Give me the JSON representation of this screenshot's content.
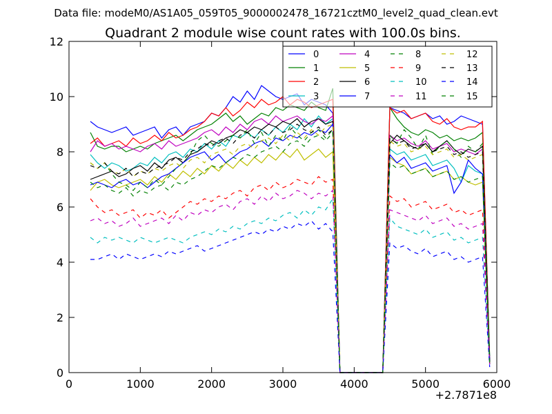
{
  "figure": {
    "suptitle": "Data file: modeM0/AS1A05_059T05_9000002478_16721cztM0_level2_quad_clean.evt"
  },
  "chart_data": {
    "type": "line",
    "title": "Quadrant 2 module wise count rates with 100.0s bins.",
    "xlabel": "",
    "ylabel": "",
    "xlim": [
      0,
      6000
    ],
    "ylim": [
      0,
      12
    ],
    "x_ticks": [
      "0",
      "1000",
      "2000",
      "3000",
      "4000",
      "5000",
      "6000"
    ],
    "y_ticks": [
      "0",
      "2",
      "4",
      "6",
      "8",
      "10",
      "12"
    ],
    "x_offset_label": "+2.7871e8",
    "grid": false,
    "legend_position": "top-right",
    "x": [
      300,
      400,
      500,
      600,
      700,
      800,
      900,
      1000,
      1100,
      1200,
      1300,
      1400,
      1500,
      1600,
      1700,
      1800,
      1900,
      2000,
      2100,
      2200,
      2300,
      2400,
      2500,
      2600,
      2700,
      2800,
      2900,
      3000,
      3100,
      3200,
      3300,
      3400,
      3500,
      3600,
      3700,
      3800,
      3900,
      4000,
      4100,
      4200,
      4300,
      4400,
      4500,
      4600,
      4700,
      4800,
      4900,
      5000,
      5100,
      5200,
      5300,
      5400,
      5500,
      5600,
      5700,
      5800,
      5900
    ],
    "series": [
      {
        "name": "0",
        "color": "#0000ff",
        "dash": "solid",
        "values": [
          9.1,
          8.9,
          8.8,
          8.7,
          8.8,
          8.9,
          8.6,
          8.7,
          8.8,
          8.9,
          8.5,
          8.8,
          8.9,
          8.6,
          8.9,
          9.0,
          9.1,
          9.4,
          9.3,
          9.6,
          10.0,
          9.8,
          10.2,
          9.9,
          10.4,
          10.2,
          10.0,
          9.9,
          10.0,
          10.1,
          9.7,
          9.9,
          9.8,
          9.7,
          9.4,
          0.0,
          0.0,
          0.0,
          0.0,
          0.0,
          0.0,
          0.0,
          9.6,
          9.5,
          9.4,
          9.2,
          9.3,
          9.4,
          9.2,
          9.3,
          9.0,
          9.1,
          9.3,
          9.2,
          9.1,
          9.0,
          0.5
        ]
      },
      {
        "name": "1",
        "color": "#008000",
        "dash": "solid",
        "values": [
          8.7,
          8.2,
          8.1,
          8.2,
          8.2,
          8.0,
          8.1,
          8.2,
          8.1,
          8.3,
          8.4,
          8.5,
          8.6,
          8.4,
          8.6,
          8.8,
          8.9,
          9.0,
          9.2,
          9.4,
          9.1,
          9.3,
          9.0,
          9.2,
          9.4,
          9.3,
          9.6,
          9.5,
          9.7,
          9.6,
          9.5,
          9.8,
          9.6,
          9.5,
          10.3,
          0.0,
          0.0,
          0.0,
          0.0,
          0.0,
          0.0,
          0.0,
          9.6,
          9.2,
          8.9,
          8.7,
          8.6,
          8.8,
          8.7,
          8.5,
          8.6,
          8.4,
          8.5,
          8.4,
          8.5,
          8.7,
          0.6
        ]
      },
      {
        "name": "2",
        "color": "#ff0000",
        "dash": "solid",
        "values": [
          8.3,
          8.5,
          8.2,
          8.3,
          8.4,
          8.2,
          8.5,
          8.3,
          8.4,
          8.6,
          8.4,
          8.7,
          8.5,
          8.6,
          8.8,
          8.9,
          9.1,
          9.4,
          9.3,
          9.6,
          9.3,
          9.5,
          9.8,
          9.6,
          9.9,
          9.7,
          9.8,
          10.0,
          9.7,
          9.9,
          9.8,
          9.6,
          9.7,
          9.8,
          9.9,
          0.0,
          0.0,
          0.0,
          0.0,
          0.0,
          0.0,
          0.0,
          9.6,
          9.4,
          9.5,
          9.2,
          9.3,
          9.4,
          9.1,
          9.0,
          9.2,
          8.9,
          8.8,
          8.9,
          8.9,
          9.1,
          0.4
        ]
      },
      {
        "name": "3",
        "color": "#00bfbf",
        "dash": "solid",
        "values": [
          7.9,
          7.6,
          7.4,
          7.6,
          7.5,
          7.3,
          7.4,
          7.6,
          7.5,
          7.8,
          7.6,
          7.9,
          8.0,
          7.8,
          8.1,
          8.0,
          8.3,
          8.1,
          8.4,
          8.2,
          8.6,
          8.5,
          8.7,
          8.5,
          8.8,
          8.6,
          8.9,
          8.7,
          9.0,
          8.8,
          9.2,
          8.9,
          9.3,
          9.0,
          9.2,
          0.0,
          0.0,
          0.0,
          0.0,
          0.0,
          0.0,
          0.0,
          8.1,
          7.9,
          8.0,
          7.7,
          7.8,
          7.9,
          7.5,
          7.6,
          7.7,
          7.4,
          6.9,
          7.5,
          7.3,
          7.2,
          0.4
        ]
      },
      {
        "name": "4",
        "color": "#bf00bf",
        "dash": "solid",
        "values": [
          8.0,
          8.4,
          8.2,
          8.3,
          8.1,
          8.2,
          8.1,
          8.0,
          8.2,
          8.3,
          8.1,
          8.4,
          8.2,
          8.3,
          8.4,
          8.5,
          8.7,
          8.8,
          8.6,
          8.9,
          8.7,
          9.0,
          8.8,
          9.1,
          9.2,
          9.0,
          9.3,
          9.1,
          9.2,
          9.3,
          9.1,
          9.0,
          9.2,
          9.1,
          9.3,
          0.0,
          0.0,
          0.0,
          0.0,
          0.0,
          0.0,
          0.0,
          8.6,
          8.4,
          8.5,
          8.3,
          8.2,
          8.4,
          8.1,
          8.2,
          8.3,
          8.0,
          8.1,
          8.0,
          7.9,
          8.1,
          0.4
        ]
      },
      {
        "name": "5",
        "color": "#bfbf00",
        "dash": "solid",
        "values": [
          6.6,
          6.9,
          7.0,
          6.8,
          6.7,
          6.8,
          6.9,
          7.0,
          6.8,
          7.1,
          6.9,
          7.2,
          7.0,
          7.3,
          7.1,
          7.4,
          7.2,
          7.5,
          7.3,
          7.6,
          7.4,
          7.7,
          7.5,
          7.8,
          7.6,
          7.9,
          7.7,
          8.0,
          7.8,
          8.1,
          7.7,
          7.9,
          8.1,
          7.8,
          8.0,
          0.0,
          0.0,
          0.0,
          0.0,
          0.0,
          0.0,
          0.0,
          7.8,
          7.6,
          7.5,
          7.2,
          7.3,
          7.4,
          7.1,
          7.2,
          7.3,
          7.0,
          7.1,
          6.9,
          6.8,
          6.9,
          0.4
        ]
      },
      {
        "name": "6",
        "color": "#000000",
        "dash": "solid",
        "values": [
          7.0,
          7.1,
          7.2,
          7.3,
          7.1,
          7.2,
          7.4,
          7.5,
          7.3,
          7.6,
          7.4,
          7.7,
          7.8,
          7.6,
          7.9,
          8.0,
          8.2,
          8.4,
          8.3,
          8.5,
          8.6,
          8.8,
          8.7,
          8.9,
          8.8,
          9.0,
          8.9,
          9.1,
          9.0,
          9.2,
          8.9,
          9.1,
          9.2,
          9.0,
          9.1,
          0.0,
          0.0,
          0.0,
          0.0,
          0.0,
          0.0,
          0.0,
          8.3,
          8.6,
          8.4,
          8.2,
          8.1,
          8.3,
          8.0,
          8.2,
          8.4,
          8.1,
          7.9,
          8.1,
          8.0,
          8.2,
          0.4
        ]
      },
      {
        "name": "7",
        "color": "#0000ff",
        "dash": "solid",
        "values": [
          6.8,
          6.9,
          6.8,
          6.7,
          6.9,
          7.0,
          6.8,
          6.9,
          6.7,
          6.9,
          7.1,
          7.2,
          7.4,
          7.6,
          7.8,
          7.9,
          8.0,
          7.7,
          7.9,
          7.6,
          7.8,
          8.0,
          8.1,
          8.3,
          8.4,
          8.2,
          8.5,
          8.4,
          8.6,
          8.5,
          8.7,
          8.6,
          8.8,
          8.7,
          9.0,
          0.0,
          0.0,
          0.0,
          0.0,
          0.0,
          0.0,
          0.0,
          7.9,
          7.6,
          7.8,
          7.4,
          7.5,
          7.6,
          7.3,
          7.4,
          7.5,
          6.5,
          6.9,
          7.7,
          7.4,
          7.2,
          0.4
        ]
      },
      {
        "name": "8",
        "color": "#008000",
        "dash": "dashed",
        "values": [
          7.6,
          7.4,
          7.6,
          7.2,
          6.9,
          6.8,
          6.6,
          6.9,
          6.7,
          7.0,
          6.8,
          7.1,
          7.4,
          7.6,
          7.9,
          8.4,
          8.6,
          8.3,
          8.2,
          8.4,
          8.6,
          8.5,
          8.8,
          8.3,
          8.7,
          8.2,
          8.6,
          8.4,
          8.9,
          8.6,
          8.4,
          8.7,
          8.8,
          8.5,
          8.8,
          0.0,
          0.0,
          0.0,
          0.0,
          0.0,
          0.0,
          0.0,
          8.6,
          8.3,
          8.8,
          8.5,
          8.1,
          8.6,
          7.9,
          8.2,
          8.4,
          8.1,
          7.8,
          8.2,
          8.0,
          8.3,
          0.3
        ]
      },
      {
        "name": "9",
        "color": "#ff0000",
        "dash": "dashed",
        "values": [
          6.3,
          6.0,
          5.8,
          5.9,
          5.7,
          5.8,
          5.9,
          5.6,
          5.8,
          5.7,
          5.9,
          5.6,
          5.8,
          6.0,
          6.2,
          6.1,
          6.3,
          6.2,
          6.4,
          6.3,
          6.5,
          6.6,
          6.4,
          6.7,
          6.8,
          6.6,
          6.9,
          6.7,
          6.8,
          7.0,
          6.9,
          6.8,
          7.1,
          6.9,
          7.0,
          0.0,
          0.0,
          0.0,
          0.0,
          0.0,
          0.0,
          0.0,
          6.4,
          6.2,
          6.3,
          6.0,
          6.1,
          6.2,
          5.9,
          6.0,
          6.1,
          5.8,
          5.9,
          5.7,
          5.8,
          5.9,
          0.3
        ]
      },
      {
        "name": "10",
        "color": "#00bfbf",
        "dash": "dashed",
        "values": [
          4.9,
          4.7,
          4.9,
          4.8,
          4.9,
          4.8,
          4.7,
          4.9,
          4.8,
          4.7,
          4.8,
          4.9,
          4.8,
          4.7,
          4.9,
          5.0,
          5.1,
          5.0,
          5.2,
          5.1,
          5.3,
          5.2,
          5.4,
          5.5,
          5.4,
          5.6,
          5.5,
          5.7,
          5.8,
          5.6,
          5.9,
          5.7,
          6.0,
          5.9,
          6.3,
          0.0,
          0.0,
          0.0,
          0.0,
          0.0,
          0.0,
          0.0,
          5.6,
          5.3,
          5.2,
          5.1,
          5.0,
          5.2,
          4.9,
          5.0,
          5.1,
          4.8,
          4.9,
          4.7,
          4.8,
          4.9,
          0.3
        ]
      },
      {
        "name": "11",
        "color": "#bf00bf",
        "dash": "dashed",
        "values": [
          5.5,
          5.6,
          5.4,
          5.5,
          5.3,
          5.4,
          5.6,
          5.3,
          5.4,
          5.5,
          5.6,
          5.4,
          5.7,
          5.5,
          5.8,
          5.7,
          5.9,
          5.8,
          6.0,
          6.1,
          5.9,
          6.2,
          6.3,
          6.1,
          6.4,
          6.2,
          6.5,
          6.3,
          6.4,
          6.6,
          6.5,
          6.3,
          6.5,
          6.4,
          6.6,
          0.0,
          0.0,
          0.0,
          0.0,
          0.0,
          0.0,
          0.0,
          5.9,
          5.8,
          5.7,
          5.6,
          5.5,
          5.7,
          5.4,
          5.5,
          5.6,
          5.3,
          5.4,
          5.2,
          5.3,
          5.4,
          0.3
        ]
      },
      {
        "name": "12",
        "color": "#bfbf00",
        "dash": "dashed",
        "values": [
          7.6,
          7.4,
          7.6,
          7.3,
          7.2,
          7.4,
          7.1,
          7.3,
          7.2,
          7.4,
          7.3,
          7.5,
          7.6,
          7.4,
          7.7,
          7.8,
          7.6,
          7.9,
          8.0,
          8.1,
          7.9,
          8.2,
          8.3,
          8.1,
          8.4,
          8.5,
          8.3,
          8.6,
          8.4,
          8.7,
          8.5,
          8.8,
          8.6,
          8.9,
          9.0,
          0.0,
          0.0,
          0.0,
          0.0,
          0.0,
          0.0,
          0.0,
          8.4,
          8.2,
          8.3,
          8.0,
          8.1,
          8.2,
          7.9,
          8.0,
          8.1,
          7.8,
          7.9,
          7.7,
          7.8,
          7.9,
          0.3
        ]
      },
      {
        "name": "13",
        "color": "#000000",
        "dash": "dashed",
        "values": [
          7.5,
          7.4,
          7.6,
          7.3,
          7.2,
          7.4,
          7.1,
          7.3,
          7.2,
          7.4,
          7.5,
          7.6,
          7.8,
          7.7,
          8.0,
          8.1,
          8.3,
          8.2,
          8.4,
          8.5,
          8.3,
          8.6,
          8.7,
          8.5,
          8.8,
          8.6,
          8.9,
          8.7,
          8.8,
          9.0,
          8.8,
          8.7,
          8.9,
          8.6,
          8.8,
          0.0,
          0.0,
          0.0,
          0.0,
          0.0,
          0.0,
          0.0,
          8.5,
          8.3,
          8.4,
          8.1,
          8.2,
          8.3,
          8.0,
          8.1,
          8.2,
          7.9,
          8.0,
          7.8,
          7.9,
          8.0,
          0.3
        ]
      },
      {
        "name": "14",
        "color": "#0000ff",
        "dash": "dashed",
        "values": [
          4.1,
          4.1,
          4.2,
          4.3,
          4.1,
          4.3,
          4.2,
          4.1,
          4.2,
          4.3,
          4.2,
          4.4,
          4.3,
          4.4,
          4.5,
          4.6,
          4.4,
          4.5,
          4.6,
          4.7,
          4.8,
          4.9,
          5.0,
          5.1,
          5.0,
          5.2,
          5.1,
          5.3,
          5.2,
          5.4,
          5.3,
          5.5,
          5.2,
          5.4,
          5.1,
          0.0,
          0.0,
          0.0,
          0.0,
          0.0,
          0.0,
          0.0,
          4.7,
          4.5,
          4.6,
          4.4,
          4.3,
          4.5,
          4.2,
          4.3,
          4.4,
          4.1,
          4.2,
          4.0,
          4.1,
          4.2,
          0.2
        ]
      },
      {
        "name": "15",
        "color": "#008000",
        "dash": "dashed",
        "values": [
          6.9,
          6.7,
          6.8,
          6.6,
          6.5,
          6.7,
          6.4,
          6.6,
          6.5,
          6.7,
          6.8,
          6.6,
          6.9,
          6.8,
          7.0,
          7.1,
          7.3,
          7.5,
          7.4,
          7.6,
          7.8,
          7.7,
          7.9,
          7.8,
          8.0,
          8.1,
          8.2,
          8.0,
          8.3,
          8.4,
          8.2,
          8.5,
          8.6,
          8.4,
          8.7,
          0.0,
          0.0,
          0.0,
          0.0,
          0.0,
          0.0,
          0.0,
          7.6,
          7.4,
          7.5,
          7.2,
          7.3,
          7.4,
          7.1,
          7.2,
          7.3,
          7.0,
          7.1,
          6.9,
          7.0,
          7.1,
          0.3
        ]
      }
    ]
  }
}
